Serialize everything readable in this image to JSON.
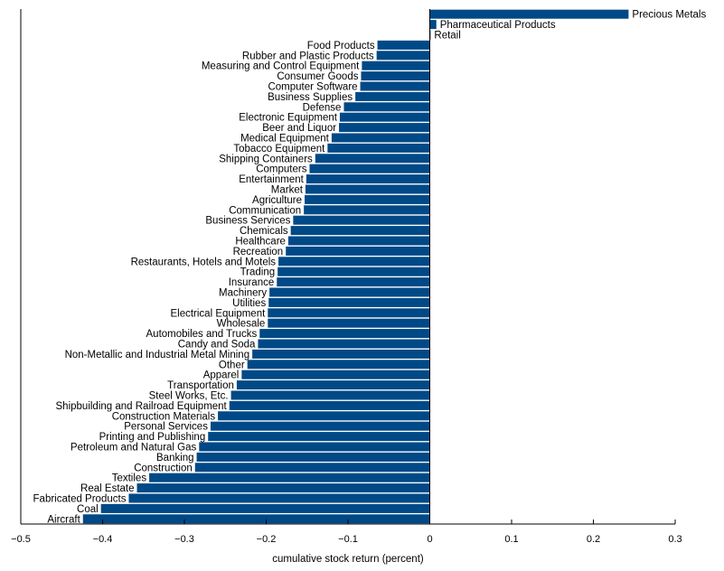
{
  "chart_data": {
    "type": "bar",
    "orientation": "horizontal",
    "xlabel": "cumulative stock return (percent)",
    "xlim": [
      -0.5,
      0.3
    ],
    "xticks": [
      -0.5,
      -0.4,
      -0.3,
      -0.2,
      -0.1,
      0,
      0.1,
      0.2,
      0.3
    ],
    "xtick_labels": [
      "−0.5",
      "−0.4",
      "−0.3",
      "−0.2",
      "−0.1",
      "0",
      "0.1",
      "0.2",
      "0.3"
    ],
    "grid": false,
    "bar_color": "#004987",
    "categories": [
      "Precious Metals",
      "Pharmaceutical Products",
      "Retail",
      "Food Products",
      "Rubber and Plastic Products",
      "Measuring and Control Equipment",
      "Consumer Goods",
      "Computer Software",
      "Business Supplies",
      "Defense",
      "Electronic Equipment",
      "Beer and Liquor",
      "Medical Equipment",
      "Tobacco Equipment",
      "Shipping Containers",
      "Computers",
      "Entertainment",
      "Market",
      "Agriculture",
      "Communication",
      "Business Services",
      "Chemicals",
      "Healthcare",
      "Recreation",
      "Restaurants, Hotels and Motels",
      "Trading",
      "Insurance",
      "Machinery",
      "Utilities",
      "Electrical Equipment",
      "Wholesale",
      "Automobiles and Trucks",
      "Candy and Soda",
      "Non-Metallic and Industrial Metal Mining",
      "Other",
      "Apparel",
      "Transportation",
      "Steel Works, Etc.",
      "Shipbuilding and Railroad Equipment",
      "Construction Materials",
      "Personal Services",
      "Printing and Publishing",
      "Petroleum and Natural Gas",
      "Banking",
      "Construction",
      "Textiles",
      "Real Estate",
      "Fabricated Products",
      "Coal",
      "Aircraft"
    ],
    "values": [
      0.243,
      0.008,
      0.001,
      -0.064,
      -0.065,
      -0.083,
      -0.084,
      -0.085,
      -0.091,
      -0.105,
      -0.11,
      -0.111,
      -0.12,
      -0.125,
      -0.14,
      -0.147,
      -0.151,
      -0.152,
      -0.153,
      -0.154,
      -0.167,
      -0.17,
      -0.173,
      -0.176,
      -0.185,
      -0.186,
      -0.187,
      -0.196,
      -0.197,
      -0.198,
      -0.198,
      -0.208,
      -0.21,
      -0.217,
      -0.223,
      -0.23,
      -0.236,
      -0.243,
      -0.245,
      -0.259,
      -0.268,
      -0.271,
      -0.282,
      -0.285,
      -0.287,
      -0.343,
      -0.358,
      -0.368,
      -0.402,
      -0.424
    ]
  }
}
